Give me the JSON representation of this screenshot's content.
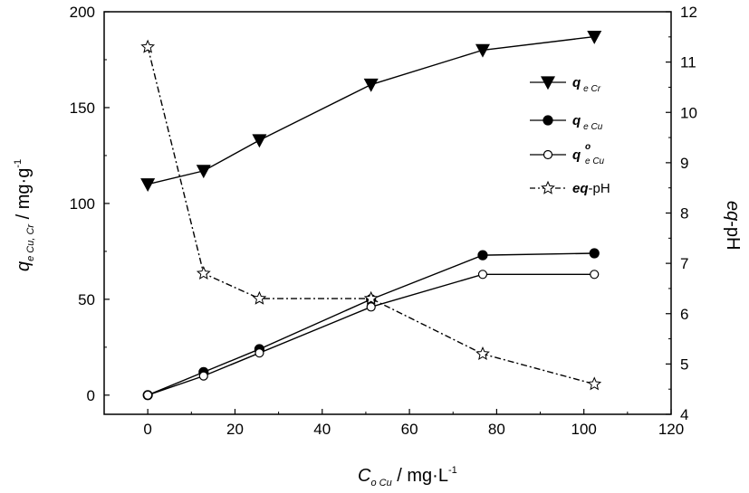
{
  "chart_data": {
    "type": "line",
    "x": [
      0,
      12.8,
      25.6,
      51.2,
      76.8,
      102.4
    ],
    "x_ticks": [
      "0",
      "20",
      "40",
      "60",
      "80",
      "100",
      "120"
    ],
    "y_left_ticks": [
      "0",
      "50",
      "100",
      "150",
      "200"
    ],
    "y_right_ticks": [
      "4",
      "5",
      "6",
      "7",
      "8",
      "9",
      "10",
      "11",
      "12"
    ],
    "xlim": [
      -10,
      120
    ],
    "ylim_left": [
      -10,
      200
    ],
    "ylim_right": [
      4,
      12
    ],
    "xlabel": {
      "main": "C",
      "sub": "o Cu",
      "unit": " / mg·L",
      "sup": "-1"
    },
    "ylabel_left": {
      "main": "q",
      "sub": "e Cu, Cr",
      "unit": " / mg·g",
      "sup": "-1"
    },
    "ylabel_right": {
      "main": "eq",
      "unit": "-pH"
    },
    "grid": false,
    "legend_position": "top-right",
    "series": [
      {
        "key": "qeCr",
        "name": "q",
        "name_sub": "e Cr",
        "axis": "left",
        "marker": "triangle-down-filled",
        "line": "solid",
        "color": "#000000",
        "values": [
          110,
          117,
          133,
          162,
          180,
          187
        ]
      },
      {
        "key": "qeCu",
        "name": "q",
        "name_sub": "e Cu",
        "axis": "left",
        "marker": "circle-filled",
        "line": "solid",
        "color": "#000000",
        "values": [
          0,
          12,
          24,
          50,
          73,
          74
        ]
      },
      {
        "key": "qoeCu",
        "name": "q",
        "name_sub": "e Cu",
        "name_sup": "o",
        "axis": "left",
        "marker": "circle-open",
        "line": "solid",
        "color": "#000000",
        "values": [
          0,
          10,
          22,
          46,
          63,
          63
        ]
      },
      {
        "key": "eqpH",
        "name": "eq",
        "name_suffix": "-pH",
        "axis": "right",
        "marker": "star-open",
        "line": "dash-dot",
        "color": "#000000",
        "values": [
          11.3,
          6.8,
          6.3,
          6.3,
          5.2,
          4.6
        ]
      }
    ]
  }
}
